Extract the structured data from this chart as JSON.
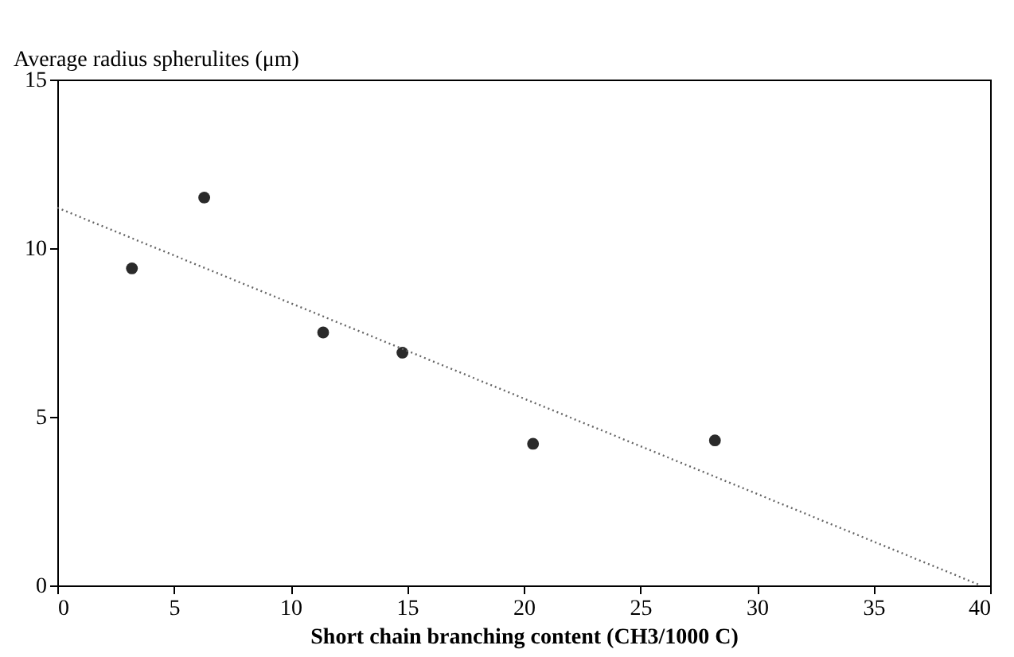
{
  "chart_data": {
    "type": "scatter",
    "xlabel": "Short chain branching content (CH3/1000 C)",
    "ylabel": "Average radius spherulites (μm)",
    "xlim": [
      0,
      40
    ],
    "xticks": [
      0,
      5,
      10,
      15,
      20,
      25,
      30,
      35,
      40
    ],
    "ylim": [
      0,
      15
    ],
    "yticks": [
      0,
      5,
      10,
      15
    ],
    "grid": false,
    "series": [
      {
        "marker": "circle",
        "color": "#2a2a2a",
        "x": [
          3.2,
          6.3,
          11.4,
          14.8,
          20.4,
          28.2
        ],
        "values": [
          9.4,
          11.5,
          7.5,
          6.9,
          4.2,
          4.3
        ]
      },
      {
        "type": "line",
        "color": "#666666",
        "line_style": "dotted",
        "marker": "none",
        "x": [
          0,
          39.6
        ],
        "values": [
          11.2,
          0
        ]
      }
    ]
  }
}
